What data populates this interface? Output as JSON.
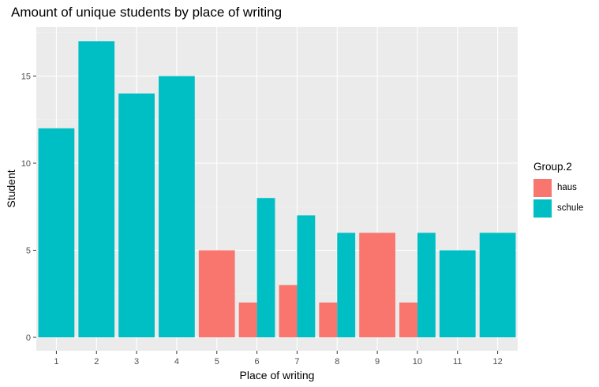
{
  "chart_data": {
    "type": "bar",
    "title": "Amount of unique students by place of writing",
    "xlabel": "Place of writing",
    "ylabel": "Student",
    "categories": [
      "1",
      "2",
      "3",
      "4",
      "5",
      "6",
      "7",
      "8",
      "9",
      "10",
      "11",
      "12"
    ],
    "ylim": [
      0,
      18
    ],
    "yticks": [
      0,
      5,
      10,
      15
    ],
    "grid": true,
    "legend_position": "right",
    "legend": {
      "title": "Group.2",
      "entries": [
        {
          "name": "haus",
          "color": "#F8766D"
        },
        {
          "name": "schule",
          "color": "#00BFC4"
        }
      ]
    },
    "series": [
      {
        "name": "haus",
        "color": "#F8766D",
        "values": [
          null,
          null,
          null,
          null,
          5,
          2,
          3,
          2,
          6,
          2,
          null,
          null
        ]
      },
      {
        "name": "schule",
        "color": "#00BFC4",
        "values": [
          12,
          17,
          14,
          15,
          null,
          8,
          7,
          6,
          null,
          6,
          5,
          6
        ]
      }
    ]
  }
}
